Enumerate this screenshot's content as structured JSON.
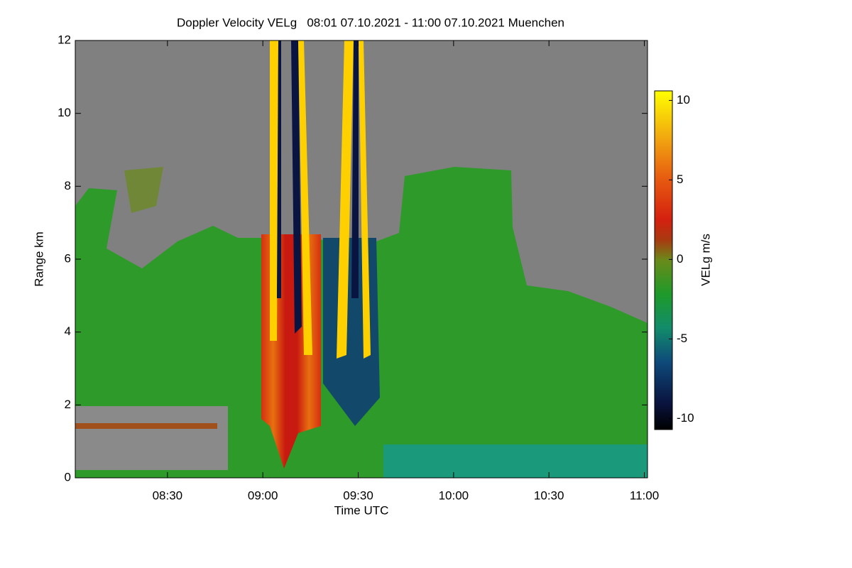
{
  "chart_data": {
    "type": "heatmap",
    "title": "Doppler Velocity VELg   08:01 07.10.2021 - 11:00 07.10.2021 Muenchen",
    "x_label": "Time UTC",
    "y_label": "Range km",
    "xlim": [
      481,
      661
    ],
    "xticks": [
      {
        "value": 510,
        "label": "08:30"
      },
      {
        "value": 540,
        "label": "09:00"
      },
      {
        "value": 570,
        "label": "09:30"
      },
      {
        "value": 600,
        "label": "10:00"
      },
      {
        "value": 630,
        "label": "10:30"
      },
      {
        "value": 660,
        "label": "11:00"
      }
    ],
    "ylim": [
      0,
      12
    ],
    "yticks": [
      0,
      2,
      4,
      6,
      8,
      10,
      12
    ],
    "colorbar": {
      "label": "VELg m/s",
      "lim": [
        -10.7,
        10.6
      ],
      "ticks": [
        -10,
        -5,
        0,
        5,
        10
      ]
    }
  }
}
